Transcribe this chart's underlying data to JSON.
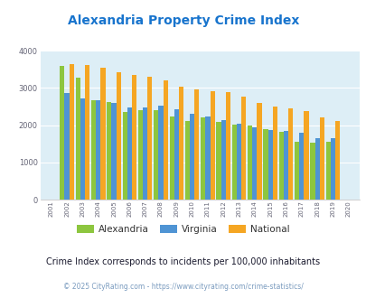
{
  "title": "Alexandria Property Crime Index",
  "title_color": "#1874cd",
  "years": [
    2001,
    2002,
    2003,
    2004,
    2005,
    2006,
    2007,
    2008,
    2009,
    2010,
    2011,
    2012,
    2013,
    2014,
    2015,
    2016,
    2017,
    2018,
    2019,
    2020
  ],
  "alexandria": [
    null,
    3600,
    3280,
    2670,
    2620,
    2350,
    2400,
    2400,
    2230,
    2110,
    2220,
    2080,
    2010,
    1980,
    1890,
    1810,
    1560,
    1520,
    1550,
    null
  ],
  "virginia": [
    null,
    2870,
    2720,
    2660,
    2590,
    2470,
    2470,
    2530,
    2430,
    2310,
    2230,
    2130,
    2040,
    1940,
    1880,
    1840,
    1800,
    1650,
    1640,
    null
  ],
  "national": [
    null,
    3640,
    3610,
    3530,
    3430,
    3350,
    3290,
    3210,
    3040,
    2950,
    2920,
    2880,
    2760,
    2600,
    2500,
    2460,
    2380,
    2200,
    2100,
    null
  ],
  "alexandria_color": "#8dc63f",
  "virginia_color": "#4f94d4",
  "national_color": "#f5a623",
  "plot_bg": "#ddeef6",
  "ylim": [
    0,
    4000
  ],
  "yticks": [
    0,
    1000,
    2000,
    3000,
    4000
  ],
  "subtitle": "Crime Index corresponds to incidents per 100,000 inhabitants",
  "subtitle_color": "#1a1a2e",
  "footer": "© 2025 CityRating.com - https://www.cityrating.com/crime-statistics/",
  "footer_color": "#7a9bbf",
  "figsize": [
    4.06,
    3.3
  ],
  "dpi": 100
}
